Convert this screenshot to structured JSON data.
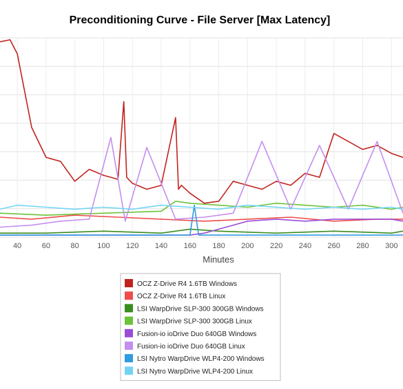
{
  "chart_data": {
    "type": "line",
    "title": "Preconditioning Curve - File Server [Max Latency]",
    "xlabel": "Minutes",
    "ylabel": "",
    "xlim": [
      28,
      308
    ],
    "ylim": [
      0,
      100
    ],
    "x_ticks": [
      40,
      60,
      80,
      100,
      120,
      140,
      160,
      180,
      200,
      220,
      240,
      260,
      280,
      300
    ],
    "y_gridlines": 7,
    "grid": true,
    "legend_position": "bottom",
    "series": [
      {
        "name": "OCZ Z-Drive R4 1.6TB Windows",
        "color": "#c0231d",
        "x": [
          28,
          35,
          40,
          50,
          60,
          70,
          80,
          90,
          100,
          110,
          114,
          116,
          120,
          130,
          140,
          150,
          152,
          154,
          160,
          170,
          180,
          190,
          200,
          210,
          220,
          230,
          240,
          250,
          260,
          270,
          280,
          290,
          300,
          308
        ],
        "y": [
          98,
          99,
          92,
          55,
          40,
          38,
          28,
          34,
          31,
          29,
          68,
          30,
          27,
          24,
          26,
          60,
          24,
          26,
          22,
          17,
          18,
          28,
          26,
          24,
          28,
          26,
          32,
          30,
          52,
          48,
          44,
          46,
          42,
          40
        ]
      },
      {
        "name": "OCZ Z-Drive R4 1.6TB Linux",
        "color": "#ee4c4c",
        "x": [
          28,
          50,
          80,
          110,
          140,
          170,
          200,
          230,
          260,
          290,
          308
        ],
        "y": [
          10,
          9,
          11,
          10,
          9,
          8,
          9,
          10,
          8,
          9,
          9
        ]
      },
      {
        "name": "LSI WarpDrive SLP-300 300GB Windows",
        "color": "#3a8c1e",
        "x": [
          28,
          60,
          100,
          140,
          160,
          180,
          220,
          260,
          300,
          308
        ],
        "y": [
          2,
          2,
          3,
          2,
          4,
          3,
          2,
          3,
          2,
          3
        ]
      },
      {
        "name": "LSI WarpDrive SLP-300 300GB Linux",
        "color": "#6cc23a",
        "x": [
          28,
          60,
          100,
          140,
          150,
          160,
          180,
          200,
          220,
          240,
          260,
          280,
          300,
          308
        ],
        "y": [
          12,
          11,
          12,
          13,
          18,
          17,
          16,
          15,
          17,
          16,
          15,
          16,
          14,
          15
        ]
      },
      {
        "name": "Fusion-io ioDrive Duo 640GB Windows",
        "color": "#9a4bd8",
        "x": [
          28,
          100,
          160,
          170,
          180,
          190,
          200,
          220,
          240,
          260,
          280,
          300,
          308
        ],
        "y": [
          1,
          1,
          1,
          2,
          4,
          6,
          8,
          9,
          8,
          9,
          9,
          9,
          8
        ]
      },
      {
        "name": "Fusion-io ioDrive Duo 640GB Linux",
        "color": "#c38ef0",
        "x": [
          28,
          50,
          70,
          90,
          105,
          115,
          130,
          150,
          170,
          190,
          210,
          230,
          250,
          270,
          290,
          308
        ],
        "y": [
          5,
          6,
          8,
          9,
          50,
          8,
          45,
          9,
          10,
          12,
          48,
          14,
          46,
          14,
          48,
          12
        ]
      },
      {
        "name": "LSI Nytro WarpDrive WLP4-200 Windows",
        "color": "#2f9be0",
        "x": [
          28,
          80,
          160,
          163,
          166,
          200,
          250,
          308
        ],
        "y": [
          1,
          1,
          1,
          16,
          1,
          1,
          1,
          1
        ]
      },
      {
        "name": "LSI Nytro WarpDrive WLP4-200 Linux",
        "color": "#72d4f5",
        "x": [
          28,
          40,
          60,
          80,
          100,
          120,
          140,
          160,
          180,
          200,
          220,
          240,
          260,
          280,
          300,
          308
        ],
        "y": [
          14,
          16,
          15,
          14,
          15,
          14,
          16,
          15,
          14,
          16,
          15,
          14,
          15,
          14,
          15,
          14
        ]
      }
    ]
  }
}
